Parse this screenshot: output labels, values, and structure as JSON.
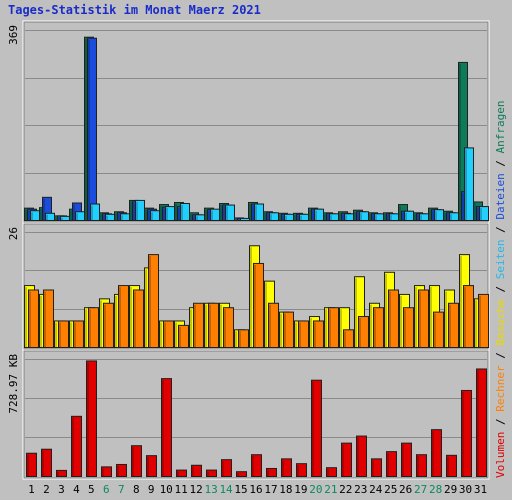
{
  "chart_data": {
    "type": "bar",
    "title": "Tages-Statistik im Monat Maerz 2021",
    "categories": [
      "1",
      "2",
      "3",
      "4",
      "5",
      "6",
      "7",
      "8",
      "9",
      "10",
      "11",
      "12",
      "13",
      "14",
      "15",
      "16",
      "17",
      "18",
      "19",
      "20",
      "21",
      "22",
      "23",
      "24",
      "25",
      "26",
      "27",
      "28",
      "29",
      "30",
      "31"
    ],
    "weekend_days": [
      "6",
      "7",
      "13",
      "14",
      "20",
      "21",
      "27",
      "28"
    ],
    "colors": {
      "background": "#c0c0c0",
      "title": "#1a2cc8",
      "weekday_label": "#000000",
      "weekend_label": "#0a8a60",
      "anfragen": "#0f7a5a",
      "dateien": "#1a4ddc",
      "seiten": "#22d0ff",
      "besuche": "#ffff00",
      "rechner": "#ff8000",
      "volumen": "#e00000"
    },
    "right_legend": {
      "items": [
        {
          "text": "Volumen",
          "color": "#e00000"
        },
        {
          "text": " / ",
          "color": "#000000"
        },
        {
          "text": "Rechner",
          "color": "#ff8000"
        },
        {
          "text": " / ",
          "color": "#000000"
        },
        {
          "text": "Besuche",
          "color": "#e8d800"
        },
        {
          "text": " / ",
          "color": "#000000"
        },
        {
          "text": "Seiten",
          "color": "#22b8e8"
        },
        {
          "text": " / ",
          "color": "#000000"
        },
        {
          "text": "Dateien",
          "color": "#1a4ddc"
        },
        {
          "text": " / ",
          "color": "#000000"
        },
        {
          "text": "Anfragen",
          "color": "#0f7a5a"
        }
      ]
    },
    "panels": [
      {
        "name": "hits",
        "ymax_label": "369",
        "ylim": [
          0,
          369
        ],
        "series": [
          {
            "name": "Anfragen",
            "color_key": "anfragen",
            "values": [
              24,
              25,
              9,
              22,
              356,
              15,
              17,
              39,
              24,
              31,
              35,
              15,
              24,
              33,
              5,
              35,
              17,
              14,
              14,
              24,
              15,
              17,
              20,
              15,
              15,
              31,
              15,
              24,
              18,
              307,
              36
            ]
          },
          {
            "name": "Dateien",
            "color_key": "dateien",
            "values": [
              22,
              45,
              9,
              34,
              354,
              13,
              15,
              38,
              22,
              26,
              27,
              11,
              21,
              30,
              4,
              32,
              15,
              12,
              12,
              22,
              13,
              14,
              17,
              13,
              13,
              18,
              13,
              21,
              15,
              56,
              27
            ]
          },
          {
            "name": "Seiten",
            "color_key": "seiten",
            "values": [
              19,
              14,
              8,
              17,
              32,
              12,
              13,
              39,
              19,
              27,
              33,
              11,
              22,
              30,
              4,
              32,
              15,
              12,
              12,
              22,
              13,
              13,
              17,
              13,
              13,
              18,
              13,
              21,
              15,
              141,
              27
            ]
          }
        ]
      },
      {
        "name": "visits",
        "ymax_label": "26",
        "ylim": [
          0,
          26
        ],
        "series": [
          {
            "name": "Besuche",
            "color_key": "besuche",
            "values": [
              14,
              12,
              6,
              6,
              9,
              11,
              12,
              14,
              18,
              6,
              6,
              9,
              10,
              10,
              4,
              23,
              15,
              8,
              6,
              7,
              9,
              9,
              16,
              10,
              17,
              12,
              14,
              14,
              13,
              21,
              11
            ]
          },
          {
            "name": "Rechner",
            "color_key": "rechner",
            "values": [
              13,
              13,
              6,
              6,
              9,
              10,
              14,
              13,
              21,
              6,
              5,
              10,
              10,
              9,
              4,
              19,
              10,
              8,
              6,
              6,
              9,
              4,
              7,
              9,
              13,
              9,
              13,
              8,
              10,
              14,
              12
            ]
          }
        ]
      },
      {
        "name": "volume",
        "ymax_label": "728.97 KB",
        "ylim": [
          0,
          728.97
        ],
        "series": [
          {
            "name": "Volumen",
            "color_key": "volumen",
            "values": [
              145,
              170,
              38,
              375,
              720,
              60,
              75,
              192,
              130,
              610,
              40,
              70,
              40,
              105,
              30,
              136,
              50,
              110,
              80,
              600,
              55,
              208,
              252,
              110,
              155,
              208,
              136,
              292,
              132,
              536,
              670
            ]
          }
        ]
      }
    ]
  }
}
